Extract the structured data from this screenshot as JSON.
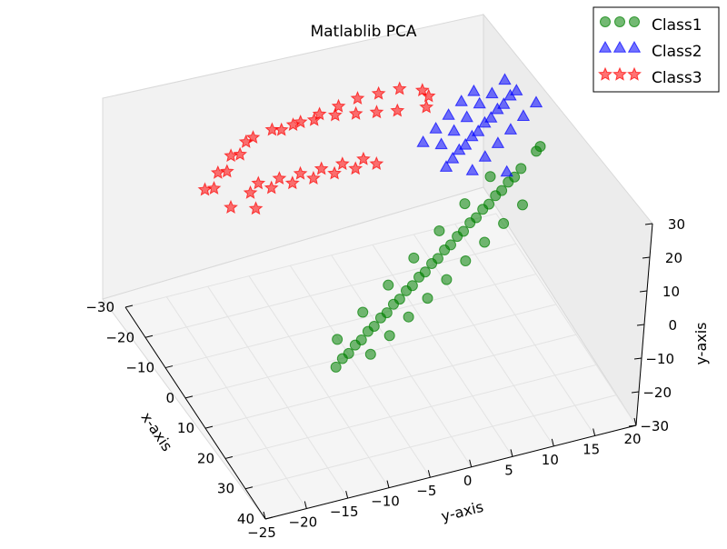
{
  "chart_data": {
    "type": "scatter",
    "title": "Matlablib PCA",
    "xlabel": "x-axis",
    "ylabel": "y-axis",
    "zlabel": "y-axis",
    "xlim": [
      -30,
      40
    ],
    "ylim": [
      -25,
      20
    ],
    "zlim": [
      -30,
      30
    ],
    "x_ticks": [
      -30,
      -20,
      -10,
      0,
      10,
      20,
      30,
      40
    ],
    "y_ticks": [
      -25,
      -20,
      -15,
      -10,
      -5,
      0,
      5,
      10,
      15,
      20
    ],
    "z_ticks": [
      -30,
      -20,
      -10,
      0,
      10,
      20,
      30
    ],
    "grid": true,
    "legend_position": "top-right",
    "series": [
      {
        "name": "Class1",
        "marker": "circle",
        "color": "#008000",
        "points": [
          {
            "x": 30,
            "y": -15,
            "z": 0
          },
          {
            "x": 29,
            "y": -14,
            "z": 1
          },
          {
            "x": 28,
            "y": -13,
            "z": 1
          },
          {
            "x": 27,
            "y": -12,
            "z": 2
          },
          {
            "x": 26,
            "y": -11,
            "z": 2
          },
          {
            "x": 25,
            "y": -10,
            "z": 3
          },
          {
            "x": 24,
            "y": -9,
            "z": 3
          },
          {
            "x": 23,
            "y": -8,
            "z": 4
          },
          {
            "x": 22,
            "y": -7,
            "z": 4
          },
          {
            "x": 21,
            "y": -6,
            "z": 5
          },
          {
            "x": 20,
            "y": -5,
            "z": 5
          },
          {
            "x": 19,
            "y": -4,
            "z": 6
          },
          {
            "x": 18,
            "y": -3,
            "z": 6
          },
          {
            "x": 17,
            "y": -2,
            "z": 7
          },
          {
            "x": 16,
            "y": -1,
            "z": 7
          },
          {
            "x": 15,
            "y": 0,
            "z": 8
          },
          {
            "x": 14,
            "y": 1,
            "z": 8
          },
          {
            "x": 13,
            "y": 2,
            "z": 9
          },
          {
            "x": 12,
            "y": 3,
            "z": 9
          },
          {
            "x": 11,
            "y": 4,
            "z": 10
          },
          {
            "x": 10,
            "y": 5,
            "z": 10
          },
          {
            "x": 9,
            "y": 6,
            "z": 11
          },
          {
            "x": 8,
            "y": 7,
            "z": 11
          },
          {
            "x": 7,
            "y": 8,
            "z": 12
          },
          {
            "x": 6,
            "y": 9,
            "z": 12
          },
          {
            "x": 5,
            "y": 10,
            "z": 13
          },
          {
            "x": 4,
            "y": 11,
            "z": 13
          },
          {
            "x": 3,
            "y": 12,
            "z": 14
          },
          {
            "x": 2,
            "y": 13,
            "z": 14
          },
          {
            "x": 1,
            "y": 14,
            "z": 15
          },
          {
            "x": 27,
            "y": -10,
            "z": -2
          },
          {
            "x": 24,
            "y": -7,
            "z": -1
          },
          {
            "x": 21,
            "y": -4,
            "z": 0
          },
          {
            "x": 18,
            "y": -1,
            "z": 1
          },
          {
            "x": 15,
            "y": 2,
            "z": 2
          },
          {
            "x": 12,
            "y": 5,
            "z": 3
          },
          {
            "x": 9,
            "y": 8,
            "z": 4
          },
          {
            "x": 6,
            "y": 11,
            "z": 5
          },
          {
            "x": 3,
            "y": 14,
            "z": 6
          },
          {
            "x": 26,
            "y": -14,
            "z": 4
          },
          {
            "x": 22,
            "y": -10,
            "z": 6
          },
          {
            "x": 18,
            "y": -6,
            "z": 8
          },
          {
            "x": 14,
            "y": -2,
            "z": 10
          },
          {
            "x": 10,
            "y": 2,
            "z": 12
          },
          {
            "x": 6,
            "y": 6,
            "z": 14
          },
          {
            "x": 2,
            "y": 10,
            "z": 16
          },
          {
            "x": 0,
            "y": 16,
            "z": 18
          },
          {
            "x": -2,
            "y": 17,
            "z": 17
          }
        ]
      },
      {
        "name": "Class2",
        "marker": "triangle",
        "color": "#0000ff",
        "points": [
          {
            "x": 0,
            "y": 5,
            "z": 20
          },
          {
            "x": -1,
            "y": 6,
            "z": 21
          },
          {
            "x": -2,
            "y": 7,
            "z": 22
          },
          {
            "x": -3,
            "y": 8,
            "z": 22
          },
          {
            "x": -4,
            "y": 9,
            "z": 23
          },
          {
            "x": -5,
            "y": 10,
            "z": 23
          },
          {
            "x": -6,
            "y": 11,
            "z": 24
          },
          {
            "x": -7,
            "y": 12,
            "z": 24
          },
          {
            "x": -8,
            "y": 13,
            "z": 25
          },
          {
            "x": -9,
            "y": 14,
            "z": 25
          },
          {
            "x": -10,
            "y": 15,
            "z": 26
          },
          {
            "x": -11,
            "y": 16,
            "z": 26
          },
          {
            "x": -3,
            "y": 5,
            "z": 24
          },
          {
            "x": -5,
            "y": 7,
            "z": 25
          },
          {
            "x": -7,
            "y": 9,
            "z": 26
          },
          {
            "x": -9,
            "y": 11,
            "z": 27
          },
          {
            "x": -11,
            "y": 13,
            "z": 27
          },
          {
            "x": -13,
            "y": 15,
            "z": 28
          },
          {
            "x": 1,
            "y": 8,
            "z": 18
          },
          {
            "x": -1,
            "y": 10,
            "z": 19
          },
          {
            "x": -3,
            "y": 12,
            "z": 20
          },
          {
            "x": -5,
            "y": 14,
            "z": 21
          },
          {
            "x": -7,
            "y": 16,
            "z": 22
          },
          {
            "x": -9,
            "y": 18,
            "z": 23
          },
          {
            "x": -4,
            "y": 3,
            "z": 25
          },
          {
            "x": -6,
            "y": 5,
            "z": 26
          },
          {
            "x": -8,
            "y": 7,
            "z": 27
          },
          {
            "x": -10,
            "y": 9,
            "z": 28
          },
          {
            "x": -12,
            "y": 11,
            "z": 28
          },
          {
            "x": 2,
            "y": 12,
            "z": 16
          }
        ]
      },
      {
        "name": "Class3",
        "marker": "star",
        "color": "#ff0000",
        "points": [
          {
            "x": -20,
            "y": -18,
            "z": 10
          },
          {
            "x": -22,
            "y": -16,
            "z": 12
          },
          {
            "x": -24,
            "y": -14,
            "z": 14
          },
          {
            "x": -26,
            "y": -12,
            "z": 16
          },
          {
            "x": -25,
            "y": -10,
            "z": 18
          },
          {
            "x": -23,
            "y": -8,
            "z": 20
          },
          {
            "x": -21,
            "y": -6,
            "z": 22
          },
          {
            "x": -19,
            "y": -4,
            "z": 24
          },
          {
            "x": -17,
            "y": -2,
            "z": 25
          },
          {
            "x": -15,
            "y": 0,
            "z": 26
          },
          {
            "x": -13,
            "y": 2,
            "z": 27
          },
          {
            "x": -18,
            "y": -14,
            "z": 8
          },
          {
            "x": -16,
            "y": -12,
            "z": 10
          },
          {
            "x": -14,
            "y": -10,
            "z": 12
          },
          {
            "x": -12,
            "y": -8,
            "z": 14
          },
          {
            "x": -10,
            "y": -6,
            "z": 16
          },
          {
            "x": -8,
            "y": -4,
            "z": 18
          },
          {
            "x": -6,
            "y": -2,
            "z": 20
          },
          {
            "x": -28,
            "y": -8,
            "z": 14
          },
          {
            "x": -27,
            "y": -6,
            "z": 16
          },
          {
            "x": -26,
            "y": -4,
            "z": 18
          },
          {
            "x": -25,
            "y": -2,
            "z": 20
          },
          {
            "x": -24,
            "y": 0,
            "z": 22
          },
          {
            "x": -22,
            "y": 2,
            "z": 24
          },
          {
            "x": -20,
            "y": 4,
            "z": 26
          },
          {
            "x": -17,
            "y": 6,
            "z": 27
          },
          {
            "x": -14,
            "y": 6,
            "z": 28
          },
          {
            "x": -11,
            "y": 5,
            "z": 28
          },
          {
            "x": -22,
            "y": -12,
            "z": 6
          },
          {
            "x": -20,
            "y": -10,
            "z": 8
          },
          {
            "x": -18,
            "y": -8,
            "z": 10
          },
          {
            "x": -16,
            "y": -6,
            "z": 12
          },
          {
            "x": -14,
            "y": -4,
            "z": 14
          },
          {
            "x": -12,
            "y": -2,
            "z": 16
          },
          {
            "x": -24,
            "y": -18,
            "z": 6
          },
          {
            "x": -26,
            "y": -16,
            "z": 8
          },
          {
            "x": -28,
            "y": -14,
            "z": 10
          },
          {
            "x": -29,
            "y": -12,
            "z": 12
          },
          {
            "x": -19,
            "y": -16,
            "z": 4
          },
          {
            "x": -15,
            "y": -14,
            "z": 6
          }
        ]
      }
    ]
  }
}
